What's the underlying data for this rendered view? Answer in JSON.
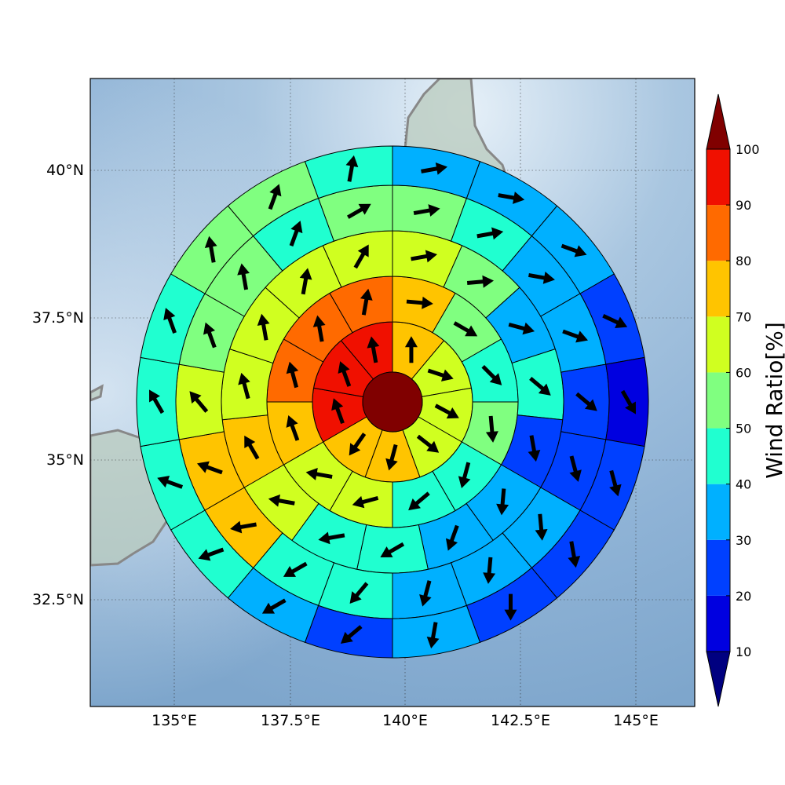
{
  "map": {
    "lon_ticks": [
      "135°E",
      "137.5°E",
      "140°E",
      "142.5°E",
      "145°E"
    ],
    "lat_ticks": [
      "40°N",
      "37.5°N",
      "35°N",
      "32.5°N"
    ],
    "gridlines": "dotted",
    "background": "shaded-relief ocean with gray coastlines (Japan)"
  },
  "colorbar": {
    "title": "Wind Ratio[%]",
    "ticks": [
      "10",
      "20",
      "30",
      "40",
      "50",
      "60",
      "70",
      "80",
      "90",
      "100"
    ],
    "colors": [
      "#000080",
      "#0000e0",
      "#0040ff",
      "#00b0ff",
      "#20ffd0",
      "#80ff80",
      "#d0ff20",
      "#ffc400",
      "#ff6a00",
      "#f01000",
      "#800000"
    ],
    "extend": "both"
  },
  "chart_data": {
    "type": "polar-sector-map",
    "center_value_color": "#800000",
    "rings": [
      {
        "ring": 1,
        "colors": [
          "#ffc400",
          "#d0ff20",
          "#d0ff20",
          "#d0ff20",
          "#ffc400",
          "#ffc400",
          "#f01000",
          "#f01000",
          "#f01000"
        ],
        "arrows": [
          0,
          108,
          118,
          128,
          195,
          215,
          -20,
          -20,
          -10
        ]
      },
      {
        "ring": 2,
        "colors": [
          "#ffc400",
          "#80ff80",
          "#20ffd0",
          "#80ff80",
          "#20ffd0",
          "#20ffd0",
          "#d0ff20",
          "#d0ff20",
          "#ffc400",
          "#ff6a00",
          "#ff6a00",
          "#ff6a00"
        ],
        "arrows": [
          95,
          120,
          135,
          175,
          195,
          230,
          255,
          280,
          -20,
          -15,
          -10,
          10
        ]
      },
      {
        "ring": 3,
        "colors": [
          "#d0ff20",
          "#80ff80",
          "#00b0ff",
          "#20ffd0",
          "#0040ff",
          "#00b0ff",
          "#00b0ff",
          "#20ffd0",
          "#20ffd0",
          "#d0ff20",
          "#ffc400",
          "#d0ff20",
          "#d0ff20",
          "#d0ff20",
          "#d0ff20"
        ],
        "arrows": [
          80,
          85,
          105,
          130,
          170,
          185,
          200,
          240,
          260,
          280,
          330,
          345,
          350,
          10,
          30
        ]
      },
      {
        "ring": 4,
        "colors": [
          "#80ff80",
          "#20ffd0",
          "#00b0ff",
          "#00b0ff",
          "#0040ff",
          "#0040ff",
          "#00b0ff",
          "#00b0ff",
          "#00b0ff",
          "#20ffd0",
          "#20ffd0",
          "#ffc400",
          "#ffc400",
          "#d0ff20",
          "#80ff80",
          "#80ff80",
          "#20ffd0",
          "#80ff80"
        ],
        "arrows": [
          80,
          80,
          100,
          110,
          130,
          165,
          175,
          185,
          195,
          220,
          240,
          260,
          290,
          320,
          340,
          350,
          20,
          60
        ]
      },
      {
        "ring": 5,
        "colors": [
          "#00b0ff",
          "#00b0ff",
          "#00b0ff",
          "#0040ff",
          "#0000e0",
          "#0040ff",
          "#0040ff",
          "#0040ff",
          "#00b0ff",
          "#0040ff",
          "#00b0ff",
          "#20ffd0",
          "#20ffd0",
          "#20ffd0",
          "#20ffd0",
          "#80ff80",
          "#80ff80",
          "#20ffd0"
        ],
        "arrows": [
          80,
          100,
          110,
          115,
          150,
          165,
          170,
          180,
          190,
          230,
          240,
          250,
          290,
          330,
          340,
          350,
          20,
          10
        ]
      }
    ]
  }
}
